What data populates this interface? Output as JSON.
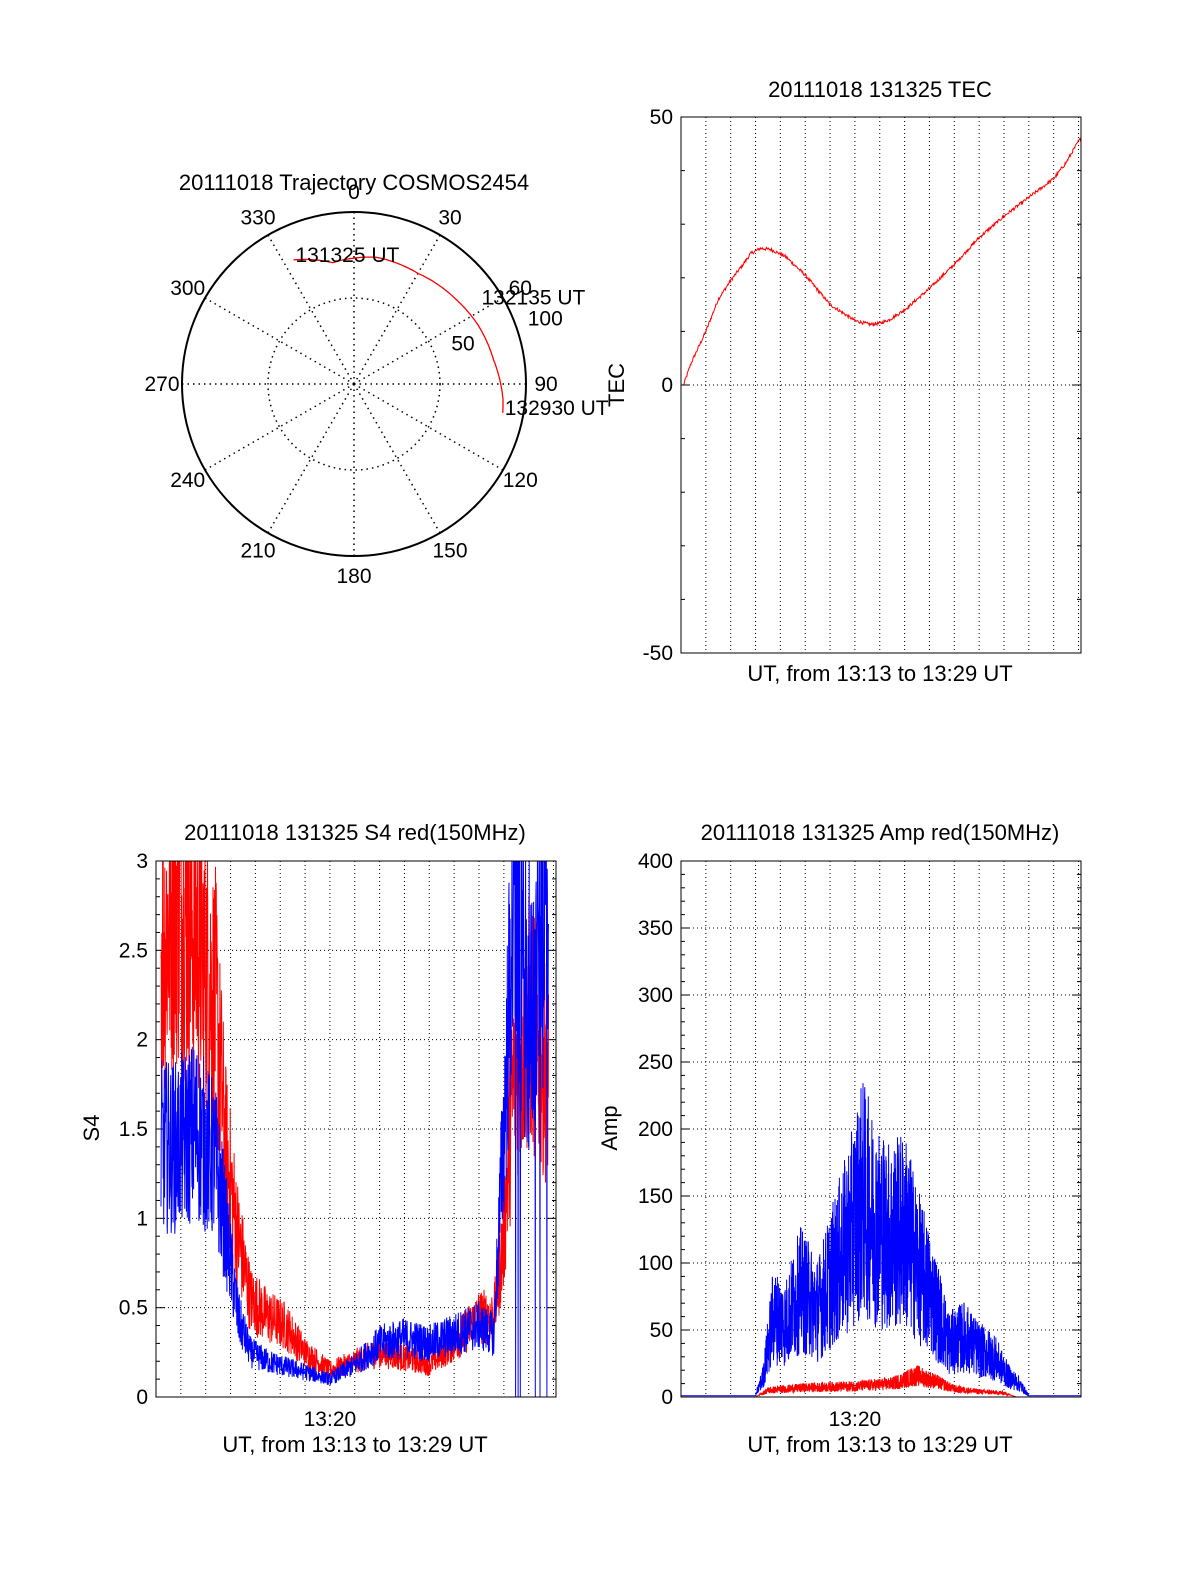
{
  "chart_data": [
    {
      "id": "trajectory",
      "type": "polar",
      "title": "20111018 Trajectory COSMOS2454",
      "azimuth_ticks": [
        0,
        30,
        60,
        90,
        120,
        150,
        180,
        210,
        240,
        270,
        300,
        330
      ],
      "radial_ticks": [
        50,
        100
      ],
      "radial_range": [
        0,
        100
      ],
      "radial_label_angle_deg": 73,
      "track": {
        "color": "#ff0000",
        "points": [
          {
            "az": 334,
            "r": 80.3
          },
          {
            "az": 350,
            "r": 71.6
          },
          {
            "az": 10,
            "r": 74.8
          },
          {
            "az": 30,
            "r": 74.3
          },
          {
            "az": 50,
            "r": 77.0
          },
          {
            "az": 65,
            "r": 79.9
          },
          {
            "az": 80,
            "r": 82.3
          },
          {
            "az": 96,
            "r": 87.1
          },
          {
            "az": 101,
            "r": 88.1
          }
        ]
      },
      "annotations": [
        {
          "text": "131325 UT",
          "az": 334,
          "r": 80.3
        },
        {
          "text": "132135 UT",
          "az": 57,
          "r": 87
        },
        {
          "text": "132930 UT",
          "az": 101,
          "r": 88.1
        }
      ],
      "grid": true
    },
    {
      "id": "tec",
      "type": "line",
      "title": "20111018 131325 TEC",
      "xlabel": "UT, from 13:13 to 13:29 UT",
      "ylabel": "TEC",
      "xlim": [
        0,
        16.1
      ],
      "ylim": [
        -50,
        50
      ],
      "yticks": [
        -50,
        0,
        50
      ],
      "x_tick_labels": [],
      "grid": true,
      "series": [
        {
          "color": "#ff0000",
          "x": [
            0.1,
            0.4,
            1.0,
            1.5,
            2.0,
            2.5,
            2.8,
            3.2,
            3.6,
            4.2,
            5.0,
            6.0,
            7.0,
            7.6,
            8.0,
            8.4,
            9.0,
            10.0,
            11.0,
            12.0,
            13.0,
            14.0,
            15.0,
            15.5,
            16.0,
            16.1
          ],
          "y": [
            0,
            4,
            10,
            16,
            19.5,
            22.5,
            24.5,
            25.5,
            25.3,
            24,
            20.5,
            15,
            12,
            11.3,
            11.5,
            12.2,
            14,
            18,
            22.5,
            27.5,
            31.5,
            35,
            38.5,
            41.5,
            45.5,
            46
          ]
        }
      ]
    },
    {
      "id": "s4",
      "type": "line",
      "title": "20111018 131325 S4 red(150MHz)",
      "xlabel": "UT, from 13:13 to 13:29 UT",
      "ylabel": "S4",
      "xlim": [
        0,
        16.1
      ],
      "ylim": [
        0,
        3
      ],
      "yticks": [
        0,
        0.5,
        1,
        1.5,
        2,
        2.5,
        3
      ],
      "x_tick_labels": [
        {
          "x": 7,
          "label": "13:20"
        }
      ],
      "grid": true,
      "series": [
        {
          "color": "#ff0000",
          "x": [
            0.2,
            0.8,
            1.6,
            2.4,
            2.8,
            3.3,
            3.8,
            4.5,
            5.2,
            6.0,
            7.0,
            8.0,
            9.0,
            10.0,
            11.0,
            12.0,
            13.0,
            13.6,
            14.0,
            14.4,
            15.0,
            15.8
          ],
          "y": [
            2.5,
            2.8,
            2.6,
            2.2,
            1.4,
            0.9,
            0.55,
            0.45,
            0.4,
            0.25,
            0.15,
            0.2,
            0.25,
            0.22,
            0.18,
            0.3,
            0.45,
            0.45,
            0.9,
            1.8,
            2.1,
            1.8
          ]
        },
        {
          "color": "#0000ff",
          "x": [
            0.2,
            0.8,
            1.6,
            2.4,
            2.8,
            3.3,
            3.8,
            4.5,
            5.2,
            6.0,
            7.0,
            8.0,
            9.0,
            10.0,
            11.0,
            12.0,
            13.0,
            13.6,
            14.0,
            14.4,
            15.0,
            15.8
          ],
          "y": [
            1.4,
            1.4,
            1.5,
            1.3,
            0.95,
            0.45,
            0.25,
            0.2,
            0.17,
            0.14,
            0.1,
            0.18,
            0.3,
            0.33,
            0.3,
            0.35,
            0.4,
            0.35,
            1.5,
            2.8,
            2.0,
            2.8
          ]
        }
      ]
    },
    {
      "id": "amp",
      "type": "line",
      "title": "20111018 131325 Amp red(150MHz)",
      "xlabel": "UT, from 13:13 to 13:29 UT",
      "ylabel": "Amp",
      "xlim": [
        0,
        16.1
      ],
      "ylim": [
        0,
        400
      ],
      "yticks": [
        0,
        50,
        100,
        150,
        200,
        250,
        300,
        350,
        400
      ],
      "x_tick_labels": [
        {
          "x": 7,
          "label": "13:20"
        }
      ],
      "grid": true,
      "series": [
        {
          "color": "#0000ff",
          "x": [
            0,
            2.0,
            3.0,
            3.3,
            3.7,
            4.2,
            4.8,
            5.5,
            6.2,
            6.8,
            7.3,
            7.8,
            8.4,
            9.0,
            9.6,
            10.2,
            10.8,
            11.4,
            12.0,
            12.6,
            13.2,
            13.6,
            14.0,
            16.1
          ],
          "y": [
            1,
            1,
            1,
            15,
            60,
            55,
            80,
            65,
            95,
            120,
            150,
            130,
            120,
            125,
            95,
            70,
            40,
            45,
            35,
            30,
            15,
            10,
            1,
            1
          ]
        },
        {
          "color": "#ff0000",
          "x": [
            0,
            3.0,
            3.5,
            5.0,
            7.0,
            8.5,
            9.5,
            10.2,
            11.0,
            12.0,
            13.0,
            13.5,
            16.1
          ],
          "y": [
            0,
            0,
            5,
            7,
            8,
            10,
            16,
            12,
            6,
            4,
            3,
            0,
            0
          ]
        }
      ]
    }
  ]
}
